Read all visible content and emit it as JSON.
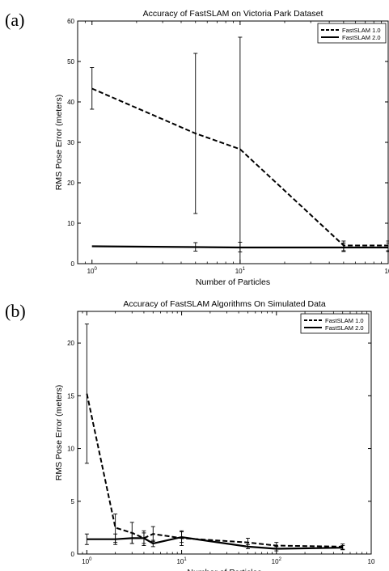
{
  "panels": [
    {
      "label": "(a)"
    },
    {
      "label": "(b)"
    }
  ],
  "chart_data": [
    {
      "type": "line",
      "title": "Accuracy of FastSLAM on Victoria Park Dataset",
      "xlabel": "Number of Particles",
      "ylabel": "RMS Pose Error (meters)",
      "x_scale": "log",
      "xlim": [
        0.8,
        100
      ],
      "ylim": [
        0,
        60
      ],
      "y_ticks": [
        0,
        10,
        20,
        30,
        40,
        50,
        60
      ],
      "y_tick_labels": [
        "0",
        "10",
        "20",
        "30",
        "40",
        "50",
        "60"
      ],
      "x_ticks": [
        1,
        10,
        100
      ],
      "x_tick_labels": [
        {
          "base": "10",
          "exp": "0"
        },
        {
          "base": "10",
          "exp": "1"
        },
        {
          "base": "10",
          "exp": ""
        }
      ],
      "legend": "top-right",
      "series": [
        {
          "name": "FastSLAM 1.0",
          "style": "dashed",
          "x": [
            1,
            5,
            10,
            50,
            100
          ],
          "y": [
            43.3,
            32.2,
            28.3,
            4.5,
            4.5
          ],
          "err_low": [
            38.2,
            12.4,
            0,
            3.2,
            3.2
          ],
          "err_high": [
            48.5,
            52,
            56,
            5.6,
            5.6
          ]
        },
        {
          "name": "FastSLAM 2.0",
          "style": "solid",
          "x": [
            1,
            5,
            10,
            50,
            100
          ],
          "y": [
            4.3,
            4.1,
            4.0,
            4.0,
            4.0
          ],
          "err_low": [
            4.3,
            3.1,
            2.9,
            3.0,
            3.0
          ],
          "err_high": [
            4.3,
            5.2,
            5.3,
            5.1,
            5.1
          ]
        }
      ]
    },
    {
      "type": "line",
      "title": "Accuracy of FastSLAM Algorithms On Simulated Data",
      "xlabel": "Number of Particles",
      "ylabel": "RMS Pose Error (meters)",
      "x_scale": "log",
      "xlim": [
        0.8,
        1000
      ],
      "ylim": [
        0,
        23
      ],
      "y_ticks": [
        0,
        5,
        10,
        15,
        20
      ],
      "y_tick_labels": [
        "0",
        "5",
        "10",
        "15",
        "20"
      ],
      "x_ticks": [
        1,
        10,
        100,
        1000
      ],
      "x_tick_labels": [
        {
          "base": "10",
          "exp": "0"
        },
        {
          "base": "10",
          "exp": "1"
        },
        {
          "base": "10",
          "exp": "2"
        },
        {
          "base": "10",
          "exp": ""
        }
      ],
      "legend": "top-right",
      "series": [
        {
          "name": "FastSLAM 1.0",
          "style": "dashed",
          "x": [
            1,
            2,
            3,
            4,
            5,
            10,
            50,
            100,
            500
          ],
          "y": [
            15.2,
            2.5,
            2.0,
            1.5,
            1.9,
            1.5,
            1.1,
            0.8,
            0.7
          ],
          "err_low": [
            8.6,
            1.1,
            1.0,
            0.8,
            1.2,
            0.8,
            0.7,
            0.5,
            0.45
          ],
          "err_high": [
            21.8,
            3.8,
            3.0,
            2.2,
            2.6,
            2.2,
            1.5,
            1.1,
            0.95
          ]
        },
        {
          "name": "FastSLAM 2.0",
          "style": "solid",
          "x": [
            1,
            2,
            3,
            4,
            5,
            10,
            50,
            100,
            500
          ],
          "y": [
            1.4,
            1.4,
            1.5,
            1.5,
            1.0,
            1.6,
            0.7,
            0.5,
            0.6
          ],
          "err_low": [
            0.9,
            0.9,
            1.0,
            1.0,
            0.7,
            1.1,
            0.5,
            0.3,
            0.4
          ],
          "err_high": [
            1.9,
            1.9,
            2.0,
            2.0,
            1.3,
            2.1,
            0.9,
            0.7,
            0.8
          ]
        }
      ]
    }
  ]
}
